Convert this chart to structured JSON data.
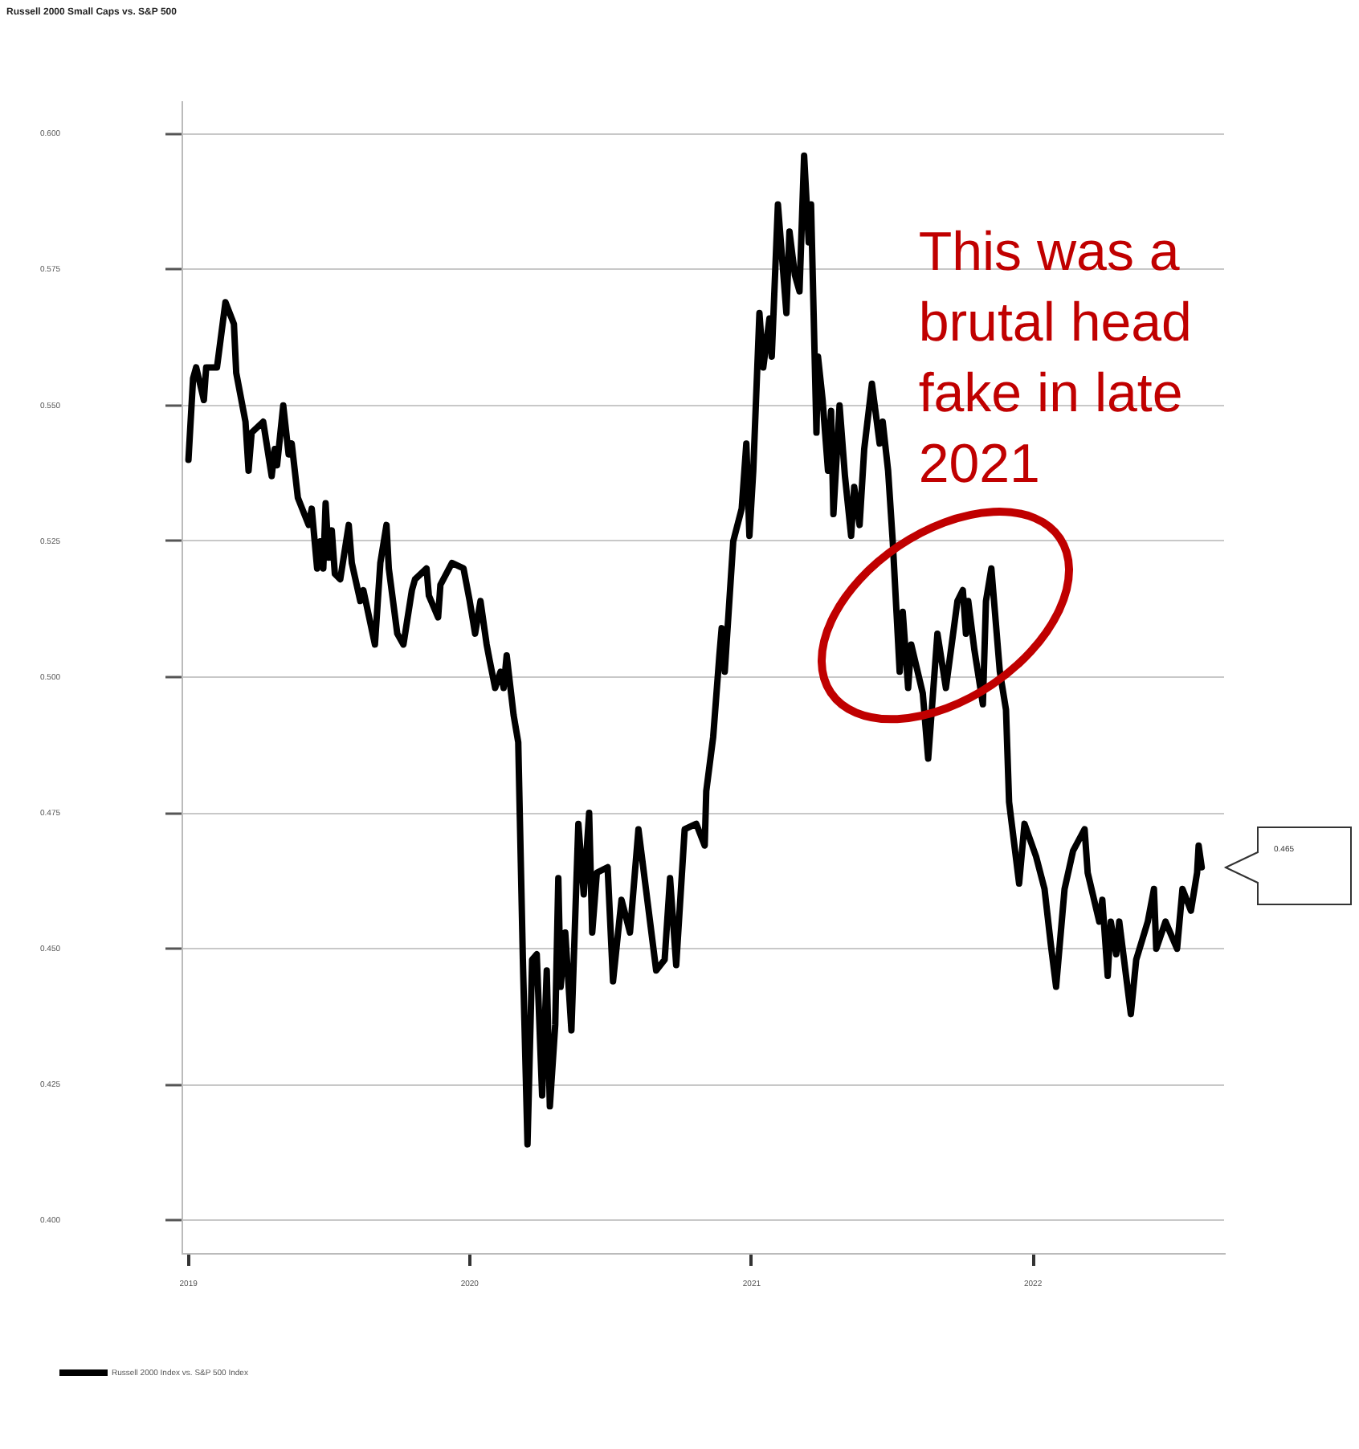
{
  "chart_data": {
    "type": "line",
    "title": "Russell 2000 Small Caps vs. S&P 500",
    "x": [
      "2019-01-01",
      "2019-01-07",
      "2019-01-11",
      "2019-01-21",
      "2019-01-24",
      "2019-02-07",
      "2019-02-18",
      "2019-03-01",
      "2019-03-04",
      "2019-03-16",
      "2019-03-20",
      "2019-03-24",
      "2019-04-08",
      "2019-04-19",
      "2019-04-23",
      "2019-04-26",
      "2019-05-04",
      "2019-05-11",
      "2019-05-15",
      "2019-05-23",
      "2019-06-06",
      "2019-06-10",
      "2019-06-17",
      "2019-06-21",
      "2019-06-25",
      "2019-06-28",
      "2019-07-02",
      "2019-07-06",
      "2019-07-10",
      "2019-07-17",
      "2019-07-28",
      "2019-08-01",
      "2019-08-12",
      "2019-08-16",
      "2019-08-31",
      "2019-09-07",
      "2019-09-15",
      "2019-09-18",
      "2019-09-29",
      "2019-10-07",
      "2019-10-18",
      "2019-10-22",
      "2019-11-06",
      "2019-11-09",
      "2019-11-21",
      "2019-11-24",
      "2019-12-09",
      "2019-12-24",
      "2020-01-01",
      "2020-01-08",
      "2020-01-15",
      "2020-01-23",
      "2020-01-27",
      "2020-02-03",
      "2020-02-10",
      "2020-02-14",
      "2020-02-18",
      "2020-02-27",
      "2020-03-04",
      "2020-03-10",
      "2020-03-16",
      "2020-03-22",
      "2020-03-28",
      "2020-04-04",
      "2020-04-10",
      "2020-04-14",
      "2020-04-21",
      "2020-04-25",
      "2020-04-28",
      "2020-05-04",
      "2020-05-12",
      "2020-05-21",
      "2020-05-28",
      "2020-06-04",
      "2020-06-08",
      "2020-06-14",
      "2020-06-28",
      "2020-07-05",
      "2020-07-16",
      "2020-07-27",
      "2020-08-07",
      "2020-08-30",
      "2020-09-10",
      "2020-09-17",
      "2020-09-25",
      "2020-10-06",
      "2020-10-21",
      "2020-11-01",
      "2020-11-03",
      "2020-11-12",
      "2020-11-20",
      "2020-11-23",
      "2020-11-27",
      "2020-12-08",
      "2020-12-19",
      "2020-12-25",
      "2020-12-29",
      "2021-01-03",
      "2021-01-11",
      "2021-01-16",
      "2021-01-24",
      "2021-01-27",
      "2021-02-04",
      "2021-02-15",
      "2021-02-19",
      "2021-02-26",
      "2021-03-04",
      "2021-03-10",
      "2021-03-16",
      "2021-03-19",
      "2021-03-26",
      "2021-03-28",
      "2021-04-03",
      "2021-04-10",
      "2021-04-14",
      "2021-04-17",
      "2021-04-25",
      "2021-05-02",
      "2021-05-10",
      "2021-05-14",
      "2021-05-21",
      "2021-05-27",
      "2021-06-06",
      "2021-06-16",
      "2021-06-20",
      "2021-06-27",
      "2021-07-03",
      "2021-07-12",
      "2021-07-16",
      "2021-07-23",
      "2021-07-27",
      "2021-08-11",
      "2021-08-18",
      "2021-08-30",
      "2021-09-10",
      "2021-09-25",
      "2021-10-02",
      "2021-10-06",
      "2021-10-09",
      "2021-10-17",
      "2021-10-28",
      "2021-11-01",
      "2021-11-08",
      "2021-11-19",
      "2021-11-27",
      "2021-12-01",
      "2021-12-14",
      "2021-12-21",
      "2022-01-05",
      "2022-01-16",
      "2022-01-24",
      "2022-01-31",
      "2022-02-11",
      "2022-02-22",
      "2022-03-09",
      "2022-03-13",
      "2022-03-28",
      "2022-04-01",
      "2022-04-08",
      "2022-04-12",
      "2022-04-19",
      "2022-04-23",
      "2022-05-08",
      "2022-05-15",
      "2022-05-30",
      "2022-06-07",
      "2022-06-10",
      "2022-06-22",
      "2022-07-07",
      "2022-07-14",
      "2022-07-25",
      "2022-08-02",
      "2022-08-04",
      "2022-08-08"
    ],
    "series": [
      {
        "name": "Russell 2000 Index vs. S&P 500 Index",
        "color": "#000000",
        "values": [
          0.54,
          0.555,
          0.557,
          0.551,
          0.557,
          0.557,
          0.569,
          0.565,
          0.556,
          0.547,
          0.538,
          0.545,
          0.547,
          0.537,
          0.542,
          0.539,
          0.55,
          0.541,
          0.543,
          0.533,
          0.528,
          0.531,
          0.52,
          0.525,
          0.52,
          0.532,
          0.522,
          0.527,
          0.519,
          0.518,
          0.528,
          0.521,
          0.514,
          0.516,
          0.506,
          0.521,
          0.528,
          0.52,
          0.508,
          0.506,
          0.516,
          0.518,
          0.52,
          0.515,
          0.511,
          0.517,
          0.521,
          0.52,
          0.514,
          0.508,
          0.514,
          0.506,
          0.503,
          0.498,
          0.501,
          0.498,
          0.504,
          0.493,
          0.488,
          0.448,
          0.414,
          0.448,
          0.449,
          0.423,
          0.446,
          0.421,
          0.436,
          0.463,
          0.443,
          0.453,
          0.435,
          0.473,
          0.46,
          0.475,
          0.453,
          0.464,
          0.465,
          0.444,
          0.459,
          0.453,
          0.472,
          0.446,
          0.448,
          0.463,
          0.447,
          0.472,
          0.473,
          0.469,
          0.479,
          0.489,
          0.504,
          0.509,
          0.501,
          0.525,
          0.531,
          0.543,
          0.526,
          0.538,
          0.567,
          0.557,
          0.566,
          0.559,
          0.587,
          0.567,
          0.582,
          0.574,
          0.571,
          0.596,
          0.58,
          0.587,
          0.545,
          0.559,
          0.551,
          0.538,
          0.549,
          0.53,
          0.55,
          0.537,
          0.526,
          0.535,
          0.528,
          0.542,
          0.554,
          0.543,
          0.547,
          0.538,
          0.525,
          0.501,
          0.512,
          0.498,
          0.506,
          0.497,
          0.485,
          0.508,
          0.498,
          0.514,
          0.516,
          0.508,
          0.514,
          0.505,
          0.495,
          0.514,
          0.52,
          0.501,
          0.494,
          0.477,
          0.462,
          0.473,
          0.467,
          0.461,
          0.451,
          0.443,
          0.461,
          0.468,
          0.472,
          0.464,
          0.455,
          0.459,
          0.445,
          0.455,
          0.449,
          0.455,
          0.438,
          0.448,
          0.455,
          0.461,
          0.45,
          0.455,
          0.45,
          0.461,
          0.457,
          0.464,
          0.469,
          0.465
        ]
      }
    ],
    "xlim": [
      "2018-12-23",
      "2022-09-06"
    ],
    "xticks": [
      "2019",
      "2020",
      "2021",
      "2022"
    ],
    "ylim": [
      0.394,
      0.606
    ],
    "yticks": [
      {
        "value": 0.4,
        "label": "0.400"
      },
      {
        "value": 0.425,
        "label": "0.425"
      },
      {
        "value": 0.45,
        "label": "0.450"
      },
      {
        "value": 0.475,
        "label": "0.475"
      },
      {
        "value": 0.5,
        "label": "0.500"
      },
      {
        "value": 0.525,
        "label": "0.525"
      },
      {
        "value": 0.55,
        "label": "0.550"
      },
      {
        "value": 0.575,
        "label": "0.575"
      },
      {
        "value": 0.6,
        "label": "0.600"
      }
    ],
    "grid": "y",
    "legend": "bottom left",
    "marker": "none",
    "line_style": "solid",
    "annotations": [
      "This was a brutal head fake in late 2021",
      "0.465"
    ]
  }
}
